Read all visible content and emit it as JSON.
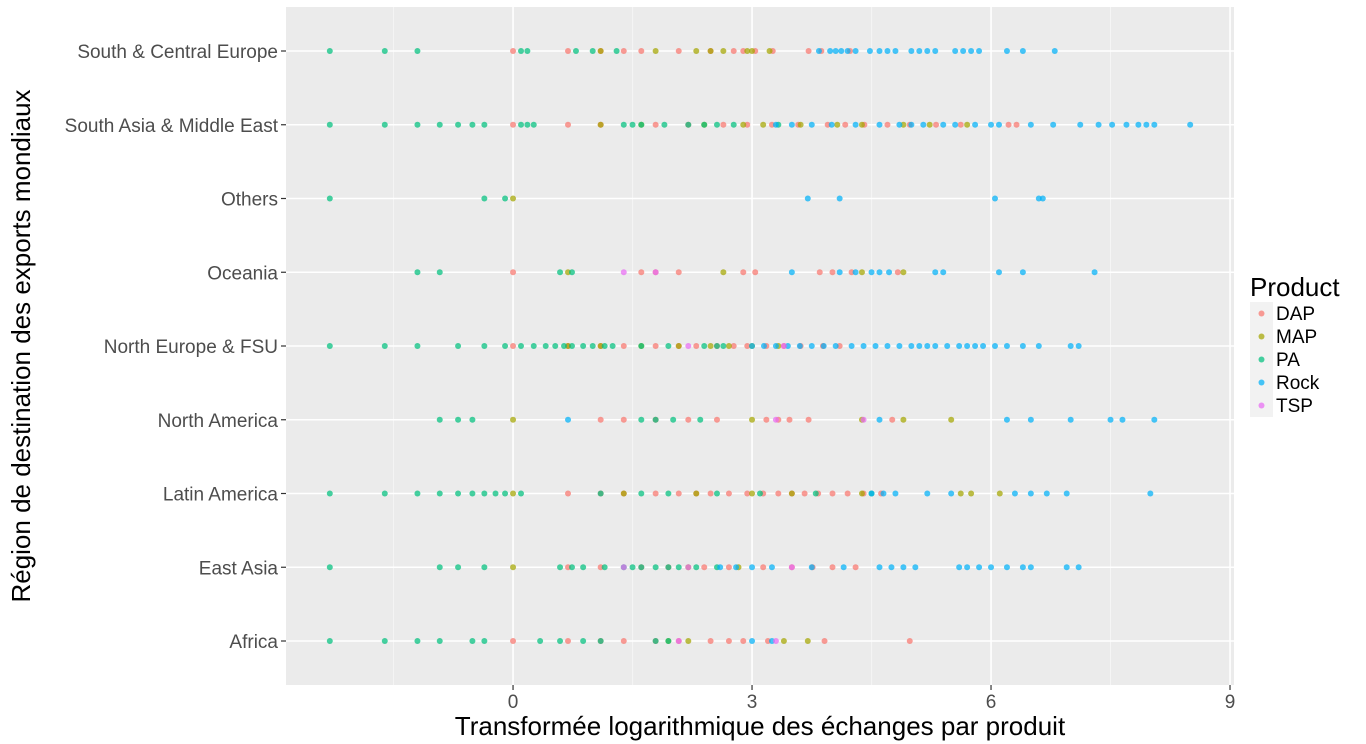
{
  "chart_data": {
    "type": "scatter",
    "title": "",
    "xlabel": "Transformée logarithmique des échanges par produit",
    "ylabel": "Région de destination des exports mondiaux",
    "xlim": [
      -2.85,
      9.05
    ],
    "x_ticks": [
      0,
      3,
      6,
      9
    ],
    "x_tick_labels": [
      "0",
      "3",
      "6",
      "9"
    ],
    "categories": [
      "Africa",
      "East Asia",
      "Latin America",
      "North America",
      "North Europe & FSU",
      "Oceania",
      "Others",
      "South Asia & Middle East",
      "South & Central Europe"
    ],
    "grid": true,
    "legend": {
      "title": "Product",
      "position": "right"
    },
    "series": [
      {
        "name": "DAP",
        "color": "#F8766D",
        "points": [
          {
            "y": "South & Central Europe",
            "x": [
              0.0,
              0.69,
              1.1,
              1.39,
              1.61,
              2.08,
              2.48,
              2.77,
              2.89,
              3.04,
              3.26,
              3.71,
              3.87,
              4.23
            ]
          },
          {
            "y": "South Asia & Middle East",
            "x": [
              0.0,
              0.69,
              1.1,
              1.79,
              2.2,
              2.64,
              2.94,
              3.25,
              3.58,
              3.95,
              4.17,
              4.41,
              4.7,
              4.98,
              5.31,
              5.62,
              6.22,
              6.32
            ]
          },
          {
            "y": "Oceania",
            "x": [
              0.0,
              1.61,
              1.79,
              2.08,
              2.89,
              3.04,
              3.85,
              4.01,
              4.25,
              4.83
            ]
          },
          {
            "y": "North Europe & FSU",
            "x": [
              0.0,
              0.69,
              1.1,
              1.39,
              1.79,
              2.08,
              2.3,
              2.56,
              2.77,
              2.94,
              3.18,
              3.4,
              3.61,
              3.89,
              4.1
            ]
          },
          {
            "y": "North America",
            "x": [
              1.1,
              1.39,
              1.79,
              2.2,
              2.56,
              3.18,
              3.33,
              3.47,
              3.71,
              4.76
            ]
          },
          {
            "y": "Latin America",
            "x": [
              0.69,
              1.1,
              1.39,
              1.79,
              2.08,
              2.3,
              2.48,
              2.71,
              2.94,
              3.14,
              3.33,
              3.5,
              3.66,
              3.83,
              4.01,
              4.2,
              4.4,
              4.62
            ]
          },
          {
            "y": "East Asia",
            "x": [
              0.69,
              1.1,
              1.61,
              1.95,
              2.4,
              2.71,
              3.14,
              3.5,
              3.76,
              4.01,
              4.3
            ]
          },
          {
            "y": "Africa",
            "x": [
              0.0,
              0.69,
              1.1,
              1.39,
              1.79,
              2.08,
              2.48,
              2.71,
              2.89,
              3.2,
              3.91,
              4.98
            ]
          }
        ]
      },
      {
        "name": "MAP",
        "color": "#A3A500",
        "points": [
          {
            "y": "South & Central Europe",
            "x": [
              1.1,
              1.79,
              2.3,
              2.48,
              2.64,
              2.94,
              3.0,
              3.22
            ]
          },
          {
            "y": "South Asia & Middle East",
            "x": [
              1.1,
              1.61,
              2.4,
              2.89,
              3.14,
              3.61,
              4.07,
              4.38,
              4.9,
              5.23,
              5.7
            ]
          },
          {
            "y": "Others",
            "x": [
              0.0
            ]
          },
          {
            "y": "Oceania",
            "x": [
              0.69,
              2.64,
              4.38,
              4.9
            ]
          },
          {
            "y": "North Europe & FSU",
            "x": [
              0.69,
              1.1,
              1.61,
              2.08,
              2.48,
              2.71,
              3.0,
              3.33
            ]
          },
          {
            "y": "North America",
            "x": [
              0.0,
              3.0,
              4.38,
              4.9,
              5.5
            ]
          },
          {
            "y": "Latin America",
            "x": [
              0.0,
              1.39,
              2.3,
              3.0,
              3.5,
              4.38,
              5.62,
              5.75,
              6.11
            ]
          },
          {
            "y": "East Asia",
            "x": [
              0.0,
              2.2,
              2.83
            ]
          },
          {
            "y": "Africa",
            "x": [
              1.95,
              2.2,
              3.4,
              3.7
            ]
          }
        ]
      },
      {
        "name": "PA",
        "color": "#00BF7D",
        "points": [
          {
            "y": "South & Central Europe",
            "x": [
              -2.3,
              -1.61,
              -1.2,
              0.1,
              0.18,
              0.79,
              1.0,
              1.3
            ]
          },
          {
            "y": "South Asia & Middle East",
            "x": [
              -2.3,
              -1.61,
              -1.2,
              -0.92,
              -0.69,
              -0.51,
              -0.36,
              0.1,
              0.18,
              0.26,
              1.39,
              1.5,
              1.61,
              1.9,
              2.2,
              2.4,
              2.56,
              2.77,
              3.33
            ]
          },
          {
            "y": "Others",
            "x": [
              -2.3,
              -0.36,
              -0.1
            ]
          },
          {
            "y": "Oceania",
            "x": [
              -1.2,
              -0.92,
              0.59,
              0.74
            ]
          },
          {
            "y": "North Europe & FSU",
            "x": [
              -2.3,
              -1.61,
              -1.2,
              -0.69,
              -0.36,
              -0.1,
              0.1,
              0.26,
              0.41,
              0.53,
              0.64,
              0.74,
              0.88,
              1.0,
              1.15,
              1.25,
              1.61,
              1.95,
              2.4,
              2.56,
              2.64
            ]
          },
          {
            "y": "North America",
            "x": [
              -0.92,
              -0.69,
              -0.51,
              1.61,
              1.79,
              2.01,
              2.35
            ]
          },
          {
            "y": "Latin America",
            "x": [
              -2.3,
              -1.61,
              -1.2,
              -0.92,
              -0.69,
              -0.51,
              -0.36,
              -0.22,
              -0.1,
              0.1,
              1.1,
              1.61,
              1.95,
              2.56,
              3.1,
              3.8,
              4.5
            ]
          },
          {
            "y": "East Asia",
            "x": [
              -2.3,
              -0.92,
              -0.69,
              -0.36,
              0.59,
              0.74,
              0.88,
              1.15,
              1.39,
              1.5,
              1.61,
              1.79,
              1.95,
              2.08,
              2.3,
              2.56
            ]
          },
          {
            "y": "Africa",
            "x": [
              -2.3,
              -1.61,
              -1.2,
              -0.92,
              -0.51,
              -0.36,
              0.34,
              0.59,
              0.88,
              1.1,
              1.79,
              1.95
            ]
          }
        ]
      },
      {
        "name": "Rock",
        "color": "#00B0F6",
        "points": [
          {
            "y": "South & Central Europe",
            "x": [
              3.84,
              3.98,
              4.05,
              4.12,
              4.2,
              4.3,
              4.48,
              4.6,
              4.7,
              4.8,
              5.0,
              5.1,
              5.2,
              5.3,
              5.55,
              5.65,
              5.75,
              5.85,
              6.2,
              6.4,
              6.8
            ]
          },
          {
            "y": "South Asia & Middle East",
            "x": [
              3.3,
              3.5,
              3.75,
              4.0,
              4.3,
              4.6,
              4.85,
              5.0,
              5.15,
              5.4,
              5.55,
              5.8,
              6.0,
              6.1,
              6.5,
              6.78,
              7.12,
              7.35,
              7.52,
              7.7,
              7.85,
              7.95,
              8.05,
              8.5
            ]
          },
          {
            "y": "Others",
            "x": [
              3.7,
              4.1,
              6.05,
              6.6,
              6.65
            ]
          },
          {
            "y": "Oceania",
            "x": [
              3.5,
              4.1,
              4.3,
              4.5,
              4.6,
              4.72,
              5.3,
              5.4,
              6.1,
              6.4,
              7.3
            ]
          },
          {
            "y": "North Europe & FSU",
            "x": [
              3.0,
              3.15,
              3.3,
              3.45,
              3.6,
              3.75,
              3.9,
              4.05,
              4.25,
              4.4,
              4.55,
              4.7,
              4.85,
              5.0,
              5.1,
              5.2,
              5.3,
              5.45,
              5.6,
              5.7,
              5.8,
              5.9,
              6.05,
              6.2,
              6.4,
              6.6,
              7.0,
              7.1
            ]
          },
          {
            "y": "North America",
            "x": [
              0.69,
              4.6,
              6.2,
              6.5,
              7.0,
              7.5,
              7.65,
              8.05
            ]
          },
          {
            "y": "Latin America",
            "x": [
              4.5,
              4.65,
              4.8,
              5.2,
              5.5,
              6.3,
              6.5,
              6.7,
              6.95,
              8.0
            ]
          },
          {
            "y": "East Asia",
            "x": [
              2.6,
              2.8,
              3.0,
              3.25,
              3.75,
              4.15,
              4.6,
              4.75,
              4.9,
              5.05,
              5.6,
              5.7,
              5.85,
              6.0,
              6.2,
              6.4,
              6.5,
              6.95,
              7.1
            ]
          },
          {
            "y": "Africa",
            "x": [
              3.0,
              3.25
            ]
          }
        ]
      },
      {
        "name": "TSP",
        "color": "#E76BF3",
        "points": [
          {
            "y": "Oceania",
            "x": [
              1.39,
              1.79
            ]
          },
          {
            "y": "North America",
            "x": [
              3.3,
              4.4
            ]
          },
          {
            "y": "East Asia",
            "x": [
              1.39,
              2.2,
              3.5
            ]
          },
          {
            "y": "Africa",
            "x": [
              2.08,
              3.3
            ]
          },
          {
            "y": "North Europe & FSU",
            "x": [
              2.2,
              3.4
            ]
          }
        ]
      }
    ]
  }
}
